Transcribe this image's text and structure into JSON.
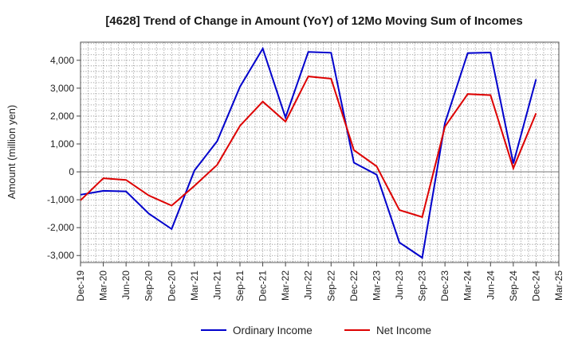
{
  "chart_data": {
    "type": "line",
    "title": "[4628]  Trend of Change in Amount (YoY) of 12Mo Moving Sum of Incomes",
    "xlabel": "",
    "ylabel": "Amount (million yen)",
    "ylim": [
      -3250,
      4650
    ],
    "yticks": [
      -3000,
      -2000,
      -1000,
      0,
      1000,
      2000,
      3000,
      4000
    ],
    "ytick_labels": [
      "-3,000",
      "-2,000",
      "-1,000",
      "0",
      "1,000",
      "2,000",
      "3,000",
      "4,000"
    ],
    "categories": [
      "Dec-19",
      "Mar-20",
      "Jun-20",
      "Sep-20",
      "Dec-20",
      "Mar-21",
      "Jun-21",
      "Sep-21",
      "Dec-21",
      "Mar-22",
      "Jun-22",
      "Sep-22",
      "Dec-22",
      "Mar-23",
      "Jun-23",
      "Sep-23",
      "Dec-23",
      "Mar-24",
      "Jun-24",
      "Sep-24",
      "Dec-24",
      "Mar-25"
    ],
    "grid": true,
    "legend_position": "bottom-center",
    "series": [
      {
        "name": "Ordinary Income",
        "color": "#0000cc",
        "values": [
          -820,
          -680,
          -700,
          -1500,
          -2050,
          50,
          1100,
          3050,
          4420,
          1950,
          4300,
          4270,
          330,
          -100,
          -2530,
          -3080,
          1750,
          4260,
          4280,
          300,
          3320,
          null
        ]
      },
      {
        "name": "Net Income",
        "color": "#dd0000",
        "values": [
          -1020,
          -230,
          -290,
          -850,
          -1210,
          -500,
          250,
          1650,
          2520,
          1800,
          3420,
          3340,
          780,
          200,
          -1370,
          -1620,
          1620,
          2790,
          2750,
          130,
          2100,
          null
        ]
      }
    ]
  }
}
